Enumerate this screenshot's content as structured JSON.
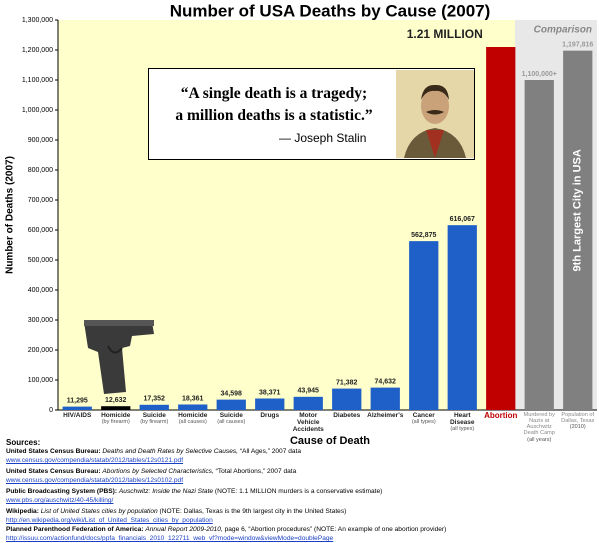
{
  "chart_data": {
    "type": "bar",
    "title": "Number of USA Deaths by Cause (2007)",
    "y_label": "Number of Deaths (2007)",
    "x_label": "Cause of Death",
    "categories": [
      "HIV/AIDS",
      "Homicide",
      "Suicide",
      "Homicide",
      "Suicide",
      "Drugs",
      "Motor Vehicle Accidents",
      "Diabetes",
      "Alzheimer's",
      "Cancer",
      "Heart Disease",
      "Abortion",
      "Murdered by Nazis at Auschwitz Death Camp",
      "Population of Dallas, Texas"
    ],
    "category_notes": [
      null,
      "(by firearm)",
      "(by firearm)",
      "(all causes)",
      "(all causes)",
      null,
      null,
      null,
      null,
      "(all types)",
      "(all types)",
      null,
      "(all years)",
      "(2010)"
    ],
    "values": [
      11295,
      12632,
      17352,
      18361,
      34598,
      38371,
      43945,
      71382,
      74632,
      562875,
      616067,
      1210000,
      1100000,
      1197816
    ],
    "value_labels": [
      "11,295",
      "12,632",
      "17,352",
      "18,361",
      "34,598",
      "38,371",
      "43,945",
      "71,382",
      "74,632",
      "562,875",
      "616,067",
      "1.21 MILLION",
      "1,100,000+",
      "1,197,816"
    ],
    "colors": [
      "#1f5fc8",
      "#000000",
      "#1f5fc8",
      "#1f5fc8",
      "#1f5fc8",
      "#1f5fc8",
      "#1f5fc8",
      "#1f5fc8",
      "#1f5fc8",
      "#1f5fc8",
      "#1f5fc8",
      "#c00000",
      "#808080",
      "#808080"
    ],
    "ylim": [
      0,
      1300000
    ],
    "yticks": [
      {
        "value": 0,
        "label": "0"
      },
      {
        "value": 100000,
        "label": "100,000"
      },
      {
        "value": 200000,
        "label": "200,000"
      },
      {
        "value": 300000,
        "label": "300,000"
      },
      {
        "value": 400000,
        "label": "400,000"
      },
      {
        "value": 500000,
        "label": "500,000"
      },
      {
        "value": 600000,
        "label": "600,000"
      },
      {
        "value": 700000,
        "label": "700,000"
      },
      {
        "value": 800000,
        "label": "800,000"
      },
      {
        "value": 900000,
        "label": "900,000"
      },
      {
        "value": 1000000,
        "label": "1,000,000"
      },
      {
        "value": 1100000,
        "label": "1,100,000"
      },
      {
        "value": 1200000,
        "label": "1,200,000"
      },
      {
        "value": 1300000,
        "label": "1,300,000"
      }
    ],
    "grid": false,
    "comparison_label": "Comparison",
    "dallas_annotation": "9th Largest City in USA",
    "quote": [
      "“A single death is a tragedy;",
      "a million deaths is a statistic.”"
    ],
    "quote_author": "— Joseph Stalin"
  },
  "sources": {
    "heading": "Sources:",
    "items": [
      {
        "org": "United States Census Bureau:",
        "title": "Deaths and Death Rates by Selective Causes,",
        "rest": "“All Ages,” 2007 data",
        "url": "www.census.gov/compendia/statab/2012/tables/12s0121.pdf"
      },
      {
        "org": "United States Census Bureau:",
        "title": "Abortions by Selected Characteristics,",
        "rest": "“Total Abortions,” 2007 data",
        "url": "www.census.gov/compendia/statab/2012/tables/12s0102.pdf"
      },
      {
        "org": "Public Broadcasting System (PBS):",
        "title": "Auschwitz: Inside the Nazi State",
        "rest": "(NOTE: 1.1 MILLION murders is a conservative estimate)",
        "url": "www.pbs.org/auschwitz/40-45/killing/"
      },
      {
        "org": "Wikipedia:",
        "title": "List of United States cities by population",
        "rest": "(NOTE: Dallas, Texas is the 9th largest city in the United States)",
        "url": "http://en.wikipedia.org/wiki/List_of_United_States_cities_by_population"
      },
      {
        "org": "Planned Parenthood Federation of America:",
        "title": "Annual Report 2009-2010,",
        "rest": "page 6, “Abortion procedures” (NOTE: An example of one abortion provider)",
        "url": "http://issuu.com/actionfund/docs/ppfa_financials_2010_122711_web_vf?mode=window&viewMode=doublePage"
      }
    ]
  }
}
